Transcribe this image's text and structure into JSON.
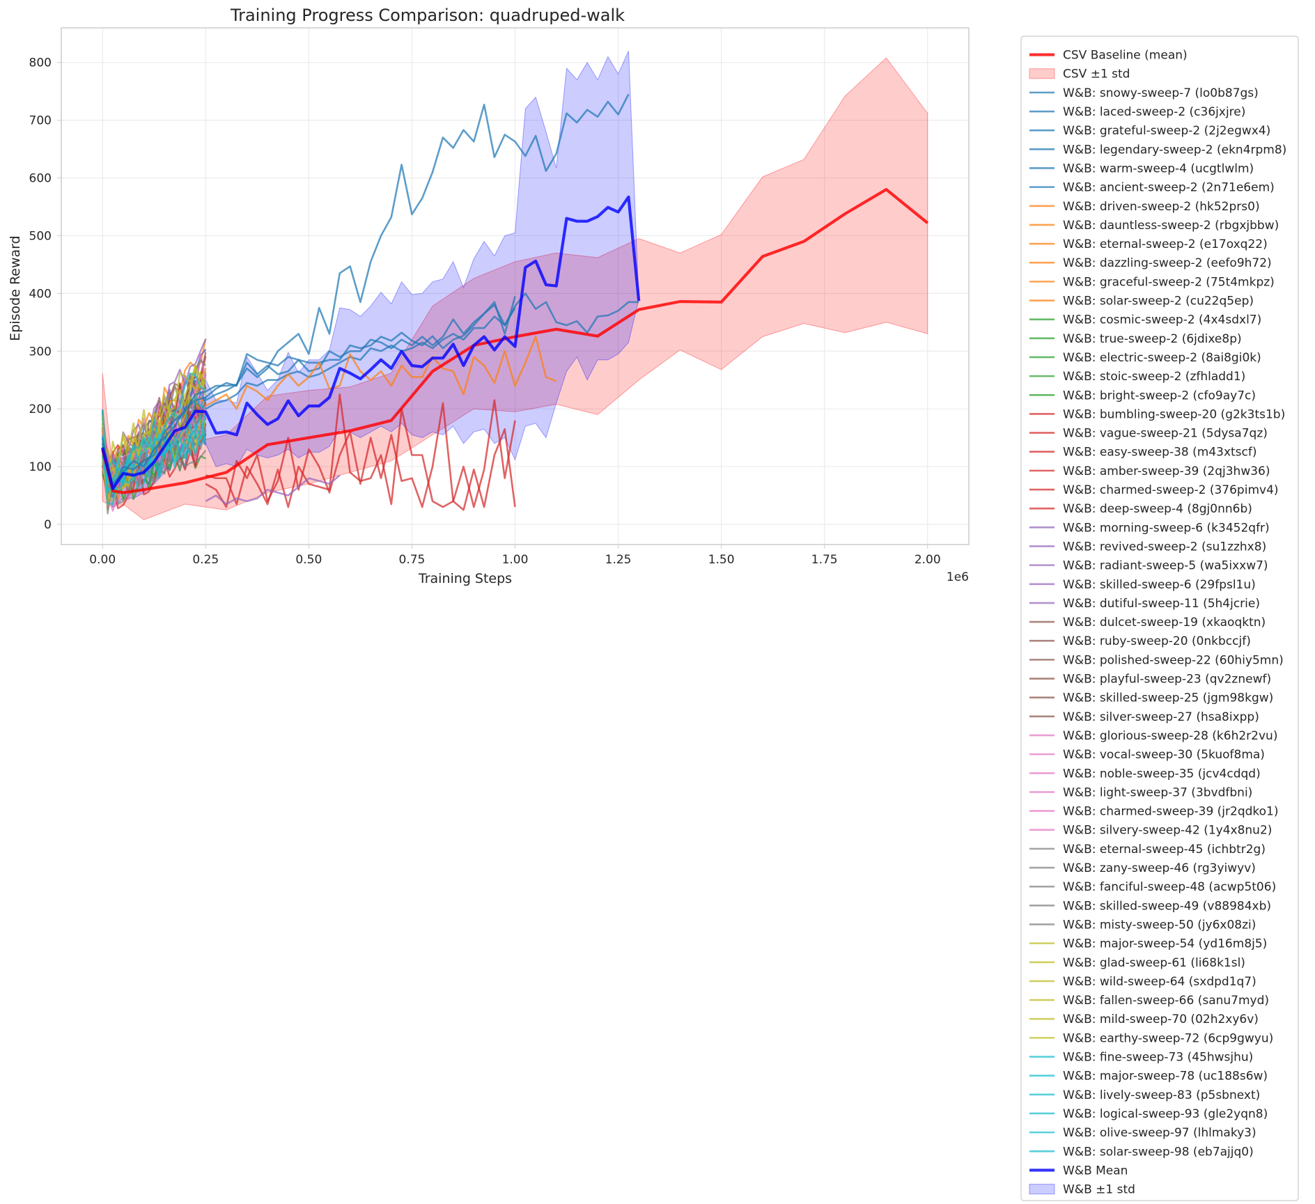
{
  "chart_data": {
    "type": "line",
    "title": "Training Progress Comparison: quadruped-walk",
    "xlabel": "Training Steps",
    "ylabel": "Episode Reward",
    "x_offset_text": "1e6",
    "xlim": [
      -100000,
      2100000
    ],
    "ylim": [
      -35,
      860
    ],
    "x_ticks": [
      0,
      250000,
      500000,
      750000,
      1000000,
      1250000,
      1500000,
      1750000,
      2000000
    ],
    "x_tick_labels": [
      "0.00",
      "0.25",
      "0.50",
      "0.75",
      "1.00",
      "1.25",
      "1.50",
      "1.75",
      "2.00"
    ],
    "y_ticks": [
      0,
      100,
      200,
      300,
      400,
      500,
      600,
      700,
      800
    ],
    "y_tick_labels": [
      "0",
      "100",
      "200",
      "300",
      "400",
      "500",
      "600",
      "700",
      "800"
    ],
    "grid": true,
    "legend_position": "outside-right",
    "csv_baseline": {
      "name": "CSV Baseline (mean)",
      "color": "#ff0000",
      "x": [
        0,
        25000,
        50000,
        100000,
        200000,
        300000,
        400000,
        500000,
        600000,
        700000,
        800000,
        900000,
        1000000,
        1100000,
        1200000,
        1300000,
        1400000,
        1500000,
        1600000,
        1700000,
        1800000,
        1900000,
        2000000
      ],
      "y": [
        130,
        58,
        55,
        60,
        72,
        90,
        138,
        150,
        162,
        180,
        265,
        310,
        325,
        338,
        326,
        372,
        386,
        385,
        464,
        490,
        538,
        580,
        522
      ],
      "std_band": {
        "name": "CSV ±1 std",
        "color": "#ff6666",
        "lower": [
          40,
          30,
          35,
          8,
          35,
          25,
          55,
          70,
          90,
          110,
          155,
          200,
          195,
          208,
          190,
          250,
          302,
          268,
          325,
          348,
          332,
          350,
          330
        ],
        "upper": [
          262,
          95,
          90,
          105,
          140,
          155,
          222,
          232,
          238,
          262,
          378,
          426,
          455,
          470,
          462,
          495,
          470,
          502,
          602,
          632,
          742,
          808,
          712
        ]
      }
    },
    "wandb_mean": {
      "name": "W&B Mean",
      "color": "#0000ff",
      "x": [
        0,
        25000,
        50000,
        75000,
        100000,
        125000,
        150000,
        175000,
        200000,
        225000,
        250000,
        275000,
        300000,
        325000,
        350000,
        375000,
        400000,
        425000,
        450000,
        475000,
        500000,
        525000,
        550000,
        575000,
        600000,
        625000,
        650000,
        675000,
        700000,
        725000,
        750000,
        775000,
        800000,
        825000,
        850000,
        875000,
        900000,
        925000,
        950000,
        975000,
        1000000,
        1025000,
        1050000,
        1075000,
        1100000,
        1125000,
        1150000,
        1175000,
        1200000,
        1225000,
        1250000,
        1275000,
        1300000
      ],
      "y": [
        133,
        62,
        88,
        85,
        90,
        108,
        135,
        162,
        168,
        196,
        195,
        158,
        160,
        155,
        210,
        190,
        173,
        183,
        214,
        188,
        205,
        205,
        220,
        270,
        262,
        252,
        268,
        285,
        270,
        300,
        275,
        273,
        288,
        288,
        312,
        275,
        310,
        325,
        302,
        325,
        308,
        445,
        456,
        415,
        413,
        530,
        525,
        525,
        533,
        549,
        541,
        567,
        387
      ],
      "std_band": {
        "name": "W&B ±1 std",
        "color": "#6666ff",
        "lower": [
          100,
          30,
          45,
          45,
          55,
          70,
          90,
          115,
          120,
          140,
          140,
          100,
          105,
          100,
          130,
          120,
          115,
          120,
          130,
          115,
          125,
          125,
          135,
          165,
          160,
          150,
          160,
          170,
          160,
          175,
          155,
          150,
          160,
          155,
          170,
          140,
          160,
          165,
          140,
          150,
          112,
          170,
          175,
          150,
          210,
          265,
          290,
          250,
          285,
          285,
          295,
          315,
          390
        ],
        "upper": [
          160,
          100,
          130,
          125,
          125,
          145,
          180,
          205,
          215,
          250,
          250,
          215,
          215,
          210,
          290,
          262,
          232,
          250,
          298,
          262,
          285,
          285,
          302,
          375,
          372,
          360,
          378,
          402,
          382,
          420,
          398,
          400,
          420,
          425,
          455,
          410,
          460,
          490,
          465,
          500,
          505,
          720,
          740,
          680,
          617,
          790,
          770,
          800,
          770,
          810,
          780,
          820,
          390
        ]
      }
    },
    "wandb_groups": [
      {
        "color": "#1f77b4",
        "names": [
          "W&B: snowy-sweep-7 (lo0b87gs)",
          "W&B: laced-sweep-2 (c36jxjre)",
          "W&B: grateful-sweep-2 (2j2egwx4)",
          "W&B: legendary-sweep-2 (ekn4rpm8)",
          "W&B: warm-sweep-4 (ucgtlwlm)",
          "W&B: ancient-sweep-2 (2n71e6em)"
        ]
      },
      {
        "color": "#ff7f0e",
        "names": [
          "W&B: driven-sweep-2 (hk52prs0)",
          "W&B: dauntless-sweep-2 (rbgxjbbw)",
          "W&B: eternal-sweep-2 (e17oxq22)",
          "W&B: dazzling-sweep-2 (eefo9h72)",
          "W&B: graceful-sweep-2 (75t4mkpz)",
          "W&B: solar-sweep-2 (cu22q5ep)"
        ]
      },
      {
        "color": "#2ca02c",
        "names": [
          "W&B: cosmic-sweep-2 (4x4sdxl7)",
          "W&B: true-sweep-2 (6jdixe8p)",
          "W&B: electric-sweep-2 (8ai8gi0k)",
          "W&B: stoic-sweep-2 (zfhladd1)",
          "W&B: bright-sweep-2 (cfo9ay7c)"
        ]
      },
      {
        "color": "#d62728",
        "names": [
          "W&B: bumbling-sweep-20 (g2k3ts1b)",
          "W&B: vague-sweep-21 (5dysa7qz)",
          "W&B: easy-sweep-38 (m43xtscf)",
          "W&B: amber-sweep-39 (2qj3hw36)",
          "W&B: charmed-sweep-2 (376pimv4)",
          "W&B: deep-sweep-4 (8gj0nn6b)"
        ]
      },
      {
        "color": "#9467bd",
        "names": [
          "W&B: morning-sweep-6 (k3452qfr)",
          "W&B: revived-sweep-2 (su1zzhx8)",
          "W&B: radiant-sweep-5 (wa5ixxw7)",
          "W&B: skilled-sweep-6 (29fpsl1u)",
          "W&B: dutiful-sweep-11 (5h4jcrie)"
        ]
      },
      {
        "color": "#8c564b",
        "names": [
          "W&B: dulcet-sweep-19 (xkaoqktn)",
          "W&B: ruby-sweep-20 (0nkbccjf)",
          "W&B: polished-sweep-22 (60hiy5mn)",
          "W&B: playful-sweep-23 (qv2znewf)",
          "W&B: skilled-sweep-25 (jgm98kgw)",
          "W&B: silver-sweep-27 (hsa8ixpp)"
        ]
      },
      {
        "color": "#e377c2",
        "names": [
          "W&B: glorious-sweep-28 (k6h2r2vu)",
          "W&B: vocal-sweep-30 (5kuof8ma)",
          "W&B: noble-sweep-35 (jcv4cdqd)",
          "W&B: light-sweep-37 (3bvdfbni)",
          "W&B: charmed-sweep-39 (jr2qdko1)",
          "W&B: silvery-sweep-42 (1y4x8nu2)"
        ]
      },
      {
        "color": "#7f7f7f",
        "names": [
          "W&B: eternal-sweep-45 (ichbtr2g)",
          "W&B: zany-sweep-46 (rg3yiwyv)",
          "W&B: fanciful-sweep-48 (acwp5t06)",
          "W&B: skilled-sweep-49 (v88984xb)",
          "W&B: misty-sweep-50 (jy6x08zi)"
        ]
      },
      {
        "color": "#bcbd22",
        "names": [
          "W&B: major-sweep-54 (yd16m8j5)",
          "W&B: glad-sweep-61 (li68k1sl)",
          "W&B: wild-sweep-64 (sxdpd1q7)",
          "W&B: fallen-sweep-66 (sanu7myd)",
          "W&B: mild-sweep-70 (02h2xy6v)",
          "W&B: earthy-sweep-72 (6cp9gwyu)"
        ]
      },
      {
        "color": "#17becf",
        "names": [
          "W&B: fine-sweep-73 (45hwsjhu)",
          "W&B: major-sweep-78 (uc188s6w)",
          "W&B: lively-sweep-83 (p5sbnext)",
          "W&B: logical-sweep-93 (gle2yqn8)",
          "W&B: olive-sweep-97 (lhlmaky3)",
          "W&B: solar-sweep-98 (eb7ajjq0)"
        ]
      }
    ],
    "long_runs": [
      {
        "name": "W&B: snowy-sweep-7 (lo0b87gs)",
        "color": "#1f77b4",
        "x": [
          0,
          25000,
          50000,
          75000,
          100000,
          125000,
          150000,
          175000,
          200000,
          225000,
          250000,
          275000,
          300000,
          325000,
          350000,
          375000,
          400000,
          425000,
          450000,
          475000,
          500000,
          525000,
          550000,
          575000,
          600000,
          625000,
          650000,
          675000,
          700000,
          725000,
          750000,
          775000,
          800000,
          825000,
          850000,
          875000,
          900000,
          925000,
          950000,
          975000,
          1000000,
          1025000,
          1050000,
          1075000,
          1100000,
          1125000,
          1150000,
          1175000,
          1200000,
          1225000,
          1250000,
          1275000
        ],
        "y": [
          150,
          60,
          100,
          95,
          110,
          120,
          160,
          180,
          195,
          225,
          230,
          240,
          240,
          242,
          270,
          255,
          270,
          300,
          315,
          330,
          295,
          375,
          330,
          435,
          447,
          385,
          455,
          500,
          532,
          623,
          537,
          565,
          610,
          670,
          652,
          683,
          663,
          727,
          636,
          675,
          663,
          638,
          673,
          612,
          642,
          712,
          696,
          718,
          706,
          732,
          710,
          745
        ]
      },
      {
        "name": "W&B: laced-sweep-2 (c36jxjre)",
        "color": "#1f77b4",
        "x": [
          0,
          25000,
          50000,
          75000,
          100000,
          125000,
          150000,
          175000,
          200000,
          225000,
          250000,
          275000,
          300000,
          325000,
          350000,
          375000,
          400000,
          425000,
          450000,
          475000,
          500000,
          525000,
          550000,
          575000,
          600000,
          625000,
          650000,
          675000,
          700000,
          725000,
          750000,
          775000,
          800000,
          825000,
          850000,
          875000,
          900000,
          925000,
          950000,
          975000,
          1000000,
          1025000,
          1050000,
          1075000,
          1100000,
          1125000,
          1150000,
          1175000,
          1200000,
          1225000,
          1250000,
          1275000,
          1300000
        ],
        "y": [
          140,
          70,
          90,
          110,
          100,
          130,
          150,
          170,
          200,
          215,
          220,
          235,
          245,
          240,
          295,
          285,
          280,
          275,
          290,
          285,
          280,
          280,
          285,
          285,
          310,
          305,
          310,
          325,
          318,
          332,
          318,
          310,
          326,
          305,
          320,
          327,
          345,
          365,
          380,
          345,
          378,
          400,
          373,
          385,
          350,
          345,
          352,
          332,
          360,
          362,
          370,
          385,
          385
        ]
      },
      {
        "name": "W&B: grateful-sweep-2 (2j2egwx4)",
        "color": "#1f77b4",
        "x": [
          250000,
          275000,
          300000,
          325000,
          350000,
          375000,
          400000,
          425000,
          450000,
          475000,
          500000,
          525000,
          550000,
          575000,
          600000,
          625000,
          650000,
          675000,
          700000,
          725000,
          750000,
          775000,
          800000,
          825000,
          850000,
          875000,
          900000,
          925000,
          950000,
          975000,
          1000000
        ],
        "y": [
          215,
          225,
          232,
          242,
          280,
          260,
          275,
          260,
          265,
          285,
          265,
          270,
          300,
          290,
          300,
          300,
          320,
          315,
          305,
          320,
          310,
          325,
          310,
          325,
          355,
          330,
          350,
          365,
          385,
          330,
          395
        ]
      },
      {
        "name": "W&B: legendary-sweep-2 (ekn4rpm8)",
        "color": "#1f77b4",
        "x": [
          250000,
          275000,
          300000,
          325000,
          350000,
          375000,
          400000,
          425000,
          450000,
          475000,
          500000,
          525000,
          550000,
          575000,
          600000,
          625000,
          650000,
          675000,
          700000,
          725000,
          750000,
          775000,
          800000,
          825000,
          850000,
          875000,
          900000,
          925000,
          950000,
          975000,
          1000000
        ],
        "y": [
          200,
          210,
          215,
          225,
          245,
          240,
          250,
          250,
          260,
          265,
          255,
          260,
          270,
          280,
          290,
          285,
          305,
          300,
          310,
          300,
          305,
          315,
          305,
          320,
          330,
          320,
          340,
          340,
          360,
          345,
          375
        ]
      },
      {
        "name": "W&B: driven-sweep-2 (hk52prs0)",
        "color": "#ff7f0e",
        "x": [
          250000,
          275000,
          300000,
          325000,
          350000,
          375000,
          400000,
          425000,
          450000,
          475000,
          500000,
          525000,
          550000,
          575000,
          600000,
          625000,
          650000,
          675000,
          700000,
          725000,
          750000,
          775000,
          800000,
          825000,
          850000,
          875000,
          900000,
          925000,
          950000,
          975000,
          1000000,
          1025000,
          1050000,
          1075000,
          1100000
        ],
        "y": [
          205,
          215,
          225,
          200,
          240,
          230,
          215,
          240,
          260,
          240,
          255,
          280,
          235,
          240,
          295,
          265,
          250,
          265,
          240,
          275,
          255,
          255,
          290,
          270,
          265,
          225,
          290,
          275,
          245,
          300,
          240,
          280,
          325,
          255,
          248
        ]
      },
      {
        "name": "W&B: deep-sweep-4 (8gj0nn6b)",
        "color": "#d62728",
        "x": [
          250000,
          275000,
          300000,
          325000,
          350000,
          375000,
          400000,
          425000,
          450000,
          475000,
          500000,
          525000,
          550000,
          575000,
          600000,
          625000,
          650000,
          675000,
          700000,
          725000,
          750000,
          775000,
          800000,
          825000,
          850000,
          875000,
          900000,
          925000,
          950000,
          975000,
          1000000
        ],
        "y": [
          85,
          80,
          80,
          35,
          100,
          70,
          35,
          95,
          30,
          100,
          70,
          65,
          60,
          225,
          90,
          75,
          80,
          120,
          35,
          200,
          120,
          120,
          40,
          30,
          40,
          100,
          30,
          95,
          215,
          80,
          180
        ]
      },
      {
        "name": "W&B: charmed-sweep-2 (376pimv4)",
        "color": "#d62728",
        "x": [
          250000,
          275000,
          300000,
          325000,
          350000,
          375000,
          400000,
          425000,
          450000,
          475000,
          500000,
          525000,
          550000,
          575000,
          600000,
          625000,
          650000,
          675000,
          700000,
          725000,
          750000,
          775000,
          800000,
          825000,
          850000,
          875000,
          900000,
          925000,
          950000,
          975000,
          1000000
        ],
        "y": [
          70,
          60,
          30,
          110,
          80,
          120,
          40,
          75,
          150,
          60,
          130,
          100,
          55,
          120,
          160,
          70,
          150,
          80,
          155,
          75,
          80,
          30,
          100,
          210,
          40,
          25,
          95,
          30,
          120,
          165,
          30
        ]
      },
      {
        "name": "W&B: morning-sweep-6 (k3452qfr)",
        "color": "#9467bd",
        "x": [
          250000,
          275000,
          300000,
          325000,
          350000,
          375000,
          400000,
          425000,
          450000,
          475000,
          500000,
          525000,
          550000,
          575000
        ],
        "y": [
          40,
          50,
          35,
          45,
          40,
          45,
          60,
          55,
          50,
          65,
          80,
          75,
          70,
          85
        ]
      }
    ],
    "short_runs_note_color_order": [
      "#1f77b4",
      "#ff7f0e",
      "#2ca02c",
      "#d62728",
      "#9467bd",
      "#8c564b",
      "#e377c2",
      "#7f7f7f",
      "#bcbd22",
      "#17becf"
    ]
  }
}
